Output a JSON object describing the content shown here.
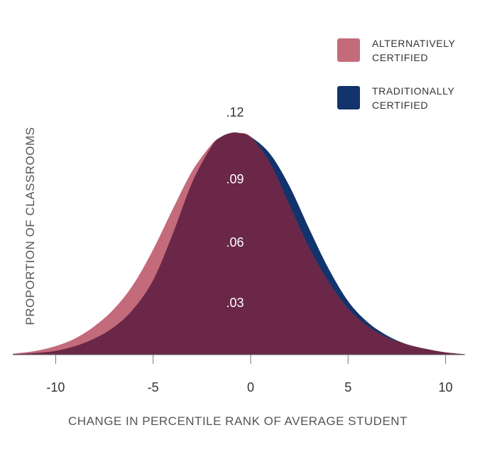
{
  "chart_data": {
    "type": "area",
    "title": "",
    "xlabel": "CHANGE IN PERCENTILE RANK OF AVERAGE STUDENT",
    "ylabel": "PROPORTION OF CLASSROOMS",
    "xlim": [
      -12.2,
      11
    ],
    "ylim": [
      0,
      0.12
    ],
    "x_ticks": [
      {
        "value": -10,
        "label": "-10"
      },
      {
        "value": -5,
        "label": "-5"
      },
      {
        "value": 0,
        "label": "0"
      },
      {
        "value": 5,
        "label": "5"
      },
      {
        "value": 10,
        "label": "10"
      }
    ],
    "y_ticks": [
      {
        "value": 0.03,
        "label": ".03"
      },
      {
        "value": 0.06,
        "label": ".06"
      },
      {
        "value": 0.09,
        "label": ".09"
      },
      {
        "value": 0.12,
        "label": ".12"
      }
    ],
    "grid": false,
    "legend_position": "top-right",
    "series": [
      {
        "name_line1": "TRADITIONALLY",
        "name_line2": "CERTIFIED",
        "color": "#12336b",
        "x": [
          -12.2,
          -11,
          -10,
          -9,
          -8,
          -7,
          -6,
          -5,
          -4,
          -3,
          -2,
          -1.5,
          -1,
          -0.6,
          0,
          1,
          2,
          3,
          4,
          5,
          6,
          7,
          8,
          9,
          10,
          11
        ],
        "y": [
          0.0003,
          0.0009,
          0.002,
          0.0045,
          0.0085,
          0.0145,
          0.024,
          0.039,
          0.063,
          0.09,
          0.109,
          0.114,
          0.116,
          0.116,
          0.114,
          0.105,
          0.088,
          0.066,
          0.045,
          0.028,
          0.017,
          0.01,
          0.0055,
          0.003,
          0.0012,
          0.0002
        ]
      },
      {
        "name_line1": "ALTERNATIVELY",
        "name_line2": "CERTIFIED",
        "color": "#c36b7b",
        "x": [
          -12.2,
          -11,
          -10,
          -9,
          -8,
          -7,
          -6,
          -5,
          -4,
          -3,
          -2,
          -1.5,
          -1,
          -0.6,
          0,
          1,
          2,
          3,
          4,
          5,
          6,
          7,
          8,
          9,
          10,
          11
        ],
        "y": [
          0.0005,
          0.002,
          0.0045,
          0.0085,
          0.015,
          0.024,
          0.037,
          0.055,
          0.076,
          0.096,
          0.11,
          0.114,
          0.116,
          0.116,
          0.114,
          0.1,
          0.078,
          0.056,
          0.038,
          0.024,
          0.015,
          0.009,
          0.0055,
          0.003,
          0.0012,
          0.0002
        ]
      }
    ],
    "overlap_color": "#6b2747"
  }
}
